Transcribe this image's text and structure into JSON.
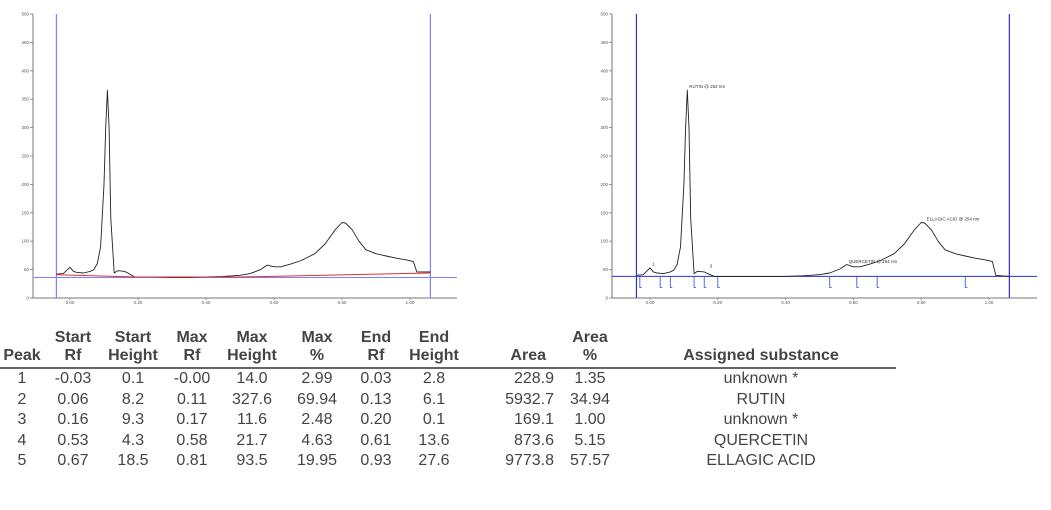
{
  "chart_data": [
    {
      "type": "line",
      "title": "",
      "name": "densitogram-raw",
      "xlabel": "",
      "ylabel": "",
      "xlim": [
        -0.15,
        1.18
      ],
      "ylim": [
        0,
        500
      ],
      "x_ticks": [
        "0.00",
        "0.20",
        "0.40",
        "0.60",
        "0.80",
        "1.00"
      ],
      "x_tick_values": [
        0.0,
        0.2,
        0.4,
        0.6,
        0.8,
        1.0
      ],
      "y_ticks": [
        "0",
        "50",
        "100",
        "150",
        "200",
        "250",
        "300",
        "350",
        "400",
        "450",
        "500"
      ],
      "y_tick_values": [
        0,
        50,
        100,
        150,
        200,
        250,
        300,
        350,
        400,
        450,
        500
      ],
      "cursor_lines": {
        "x_start": -0.04,
        "x_end": 1.06,
        "y_level": 36
      },
      "colors": {
        "trace": "#222222",
        "baseline": "#e03030",
        "cursor": "#8080ff"
      },
      "series": [
        {
          "name": "signal",
          "x": [
            -0.04,
            -0.02,
            0.0,
            0.01,
            0.02,
            0.04,
            0.06,
            0.07,
            0.08,
            0.09,
            0.1,
            0.105,
            0.11,
            0.115,
            0.12,
            0.13,
            0.14,
            0.16,
            0.17,
            0.19,
            0.2,
            0.25,
            0.3,
            0.35,
            0.4,
            0.45,
            0.5,
            0.53,
            0.56,
            0.58,
            0.6,
            0.62,
            0.65,
            0.68,
            0.7,
            0.72,
            0.75,
            0.78,
            0.8,
            0.81,
            0.83,
            0.85,
            0.87,
            0.9,
            0.93,
            0.96,
            0.99,
            1.01,
            1.02,
            1.06
          ],
          "values": [
            42,
            43,
            54,
            47,
            45,
            44,
            47,
            50,
            60,
            90,
            200,
            300,
            366,
            300,
            140,
            44,
            48,
            47,
            44,
            37,
            37,
            37,
            36,
            36,
            37,
            38,
            40,
            43,
            50,
            58,
            55,
            55,
            60,
            66,
            72,
            78,
            95,
            120,
            133,
            132,
            120,
            100,
            85,
            78,
            74,
            70,
            67,
            64,
            46,
            46
          ]
        },
        {
          "name": "baseline",
          "x": [
            -0.04,
            0.2,
            0.5,
            1.06
          ],
          "values": [
            41,
            37,
            37,
            44
          ]
        }
      ]
    },
    {
      "type": "line",
      "title": "",
      "name": "densitogram-integrated",
      "xlabel": "",
      "ylabel": "",
      "xlim": [
        -0.15,
        1.18
      ],
      "ylim": [
        0,
        500
      ],
      "x_ticks": [
        "0.00",
        "0.20",
        "0.40",
        "0.60",
        "0.80",
        "1.00"
      ],
      "x_tick_values": [
        0.0,
        0.2,
        0.4,
        0.6,
        0.8,
        1.0
      ],
      "y_ticks": [
        "0",
        "50",
        "100",
        "150",
        "200",
        "250",
        "300",
        "350",
        "400",
        "450",
        "500"
      ],
      "y_tick_values": [
        0,
        50,
        100,
        150,
        200,
        250,
        300,
        350,
        400,
        450,
        500
      ],
      "cursor_lines": {
        "x_start": -0.04,
        "x_end": 1.06,
        "y_level": 38
      },
      "colors": {
        "trace": "#222222",
        "cursor": "#3030d0",
        "markers": "#4a5ae0"
      },
      "annotations": [
        {
          "text": "RUTIN @ 254 nm",
          "x": 0.11,
          "y": 366
        },
        {
          "text": "QUERCETIN @ 254 nm",
          "x": 0.58,
          "y": 58
        },
        {
          "text": "ELLAGIC ACID @ 254 nm",
          "x": 0.81,
          "y": 133
        },
        {
          "text": "1",
          "x": -0.0,
          "y": 54
        },
        {
          "text": "3",
          "x": 0.17,
          "y": 50
        }
      ],
      "peak_boundaries": [
        -0.03,
        0.03,
        0.06,
        0.13,
        0.16,
        0.2,
        0.53,
        0.61,
        0.67,
        0.93
      ],
      "series": [
        {
          "name": "signal",
          "x": [
            -0.04,
            -0.02,
            0.0,
            0.01,
            0.02,
            0.04,
            0.06,
            0.07,
            0.08,
            0.09,
            0.1,
            0.105,
            0.11,
            0.115,
            0.12,
            0.13,
            0.14,
            0.16,
            0.17,
            0.19,
            0.2,
            0.25,
            0.3,
            0.35,
            0.4,
            0.45,
            0.5,
            0.53,
            0.56,
            0.58,
            0.6,
            0.62,
            0.65,
            0.68,
            0.7,
            0.72,
            0.75,
            0.78,
            0.8,
            0.81,
            0.83,
            0.85,
            0.87,
            0.9,
            0.93,
            0.96,
            0.99,
            1.01,
            1.02,
            1.06
          ],
          "values": [
            40,
            41,
            53,
            46,
            44,
            43,
            46,
            49,
            59,
            90,
            200,
            300,
            366,
            300,
            140,
            43,
            47,
            46,
            43,
            38,
            38,
            38,
            38,
            38,
            38,
            39,
            41,
            44,
            51,
            59,
            55,
            55,
            60,
            66,
            72,
            78,
            95,
            120,
            133,
            132,
            120,
            100,
            85,
            78,
            74,
            70,
            67,
            64,
            40,
            38
          ]
        }
      ]
    }
  ],
  "table": {
    "headers": [
      {
        "line1": "",
        "line2": "Peak"
      },
      {
        "line1": "Start",
        "line2": "Rf"
      },
      {
        "line1": "Start",
        "line2": "Height"
      },
      {
        "line1": "Max",
        "line2": "Rf"
      },
      {
        "line1": "Max",
        "line2": "Height"
      },
      {
        "line1": "Max",
        "line2": "%"
      },
      {
        "line1": "End",
        "line2": "Rf"
      },
      {
        "line1": "End",
        "line2": "Height"
      },
      {
        "line1": "",
        "line2": "Area"
      },
      {
        "line1": "Area",
        "line2": "%"
      },
      {
        "line1": "",
        "line2": "Assigned substance"
      }
    ],
    "rows": [
      [
        "1",
        "-0.03",
        "0.1",
        "-0.00",
        "14.0",
        "2.99",
        "0.03",
        "2.8",
        "228.9",
        "1.35",
        "unknown *"
      ],
      [
        "2",
        "0.06",
        "8.2",
        "0.11",
        "327.6",
        "69.94",
        "0.13",
        "6.1",
        "5932.7",
        "34.94",
        "RUTIN"
      ],
      [
        "3",
        "0.16",
        "9.3",
        "0.17",
        "11.6",
        "2.48",
        "0.20",
        "0.1",
        "169.1",
        "1.00",
        "unknown *"
      ],
      [
        "4",
        "0.53",
        "4.3",
        "0.58",
        "21.7",
        "4.63",
        "0.61",
        "13.6",
        "873.6",
        "5.15",
        "QUERCETIN"
      ],
      [
        "5",
        "0.67",
        "18.5",
        "0.81",
        "93.5",
        "19.95",
        "0.93",
        "27.6",
        "9773.8",
        "57.57",
        "ELLAGIC ACID"
      ]
    ]
  }
}
